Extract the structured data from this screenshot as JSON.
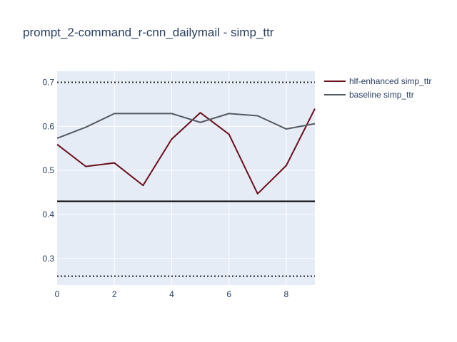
{
  "chart_data": {
    "type": "line",
    "title": "prompt_2-command_r-cnn_dailymail - simp_ttr",
    "xlabel": "",
    "ylabel": "",
    "xlim": [
      0,
      9
    ],
    "ylim": [
      0.24,
      0.725
    ],
    "x_ticks": [
      0,
      2,
      4,
      6,
      8
    ],
    "y_ticks": [
      0.3,
      0.4,
      0.5,
      0.6,
      0.7
    ],
    "grid": true,
    "legend_position": "top-right",
    "x": [
      0,
      1,
      2,
      3,
      4,
      5,
      6,
      7,
      8,
      9
    ],
    "series": [
      {
        "name": "hlf-enhanced simp_ttr",
        "color": "#6b0f1a",
        "values": [
          0.559,
          0.509,
          0.517,
          0.466,
          0.571,
          0.631,
          0.582,
          0.447,
          0.511,
          0.64
        ]
      },
      {
        "name": "baseline simp_ttr",
        "color": "#555a60",
        "values": [
          0.573,
          0.598,
          0.629,
          0.629,
          0.629,
          0.609,
          0.629,
          0.624,
          0.594,
          0.606
        ]
      }
    ],
    "reference_lines": [
      {
        "y": 0.7,
        "style": "dotted",
        "color": "#222222"
      },
      {
        "y": 0.43,
        "style": "solid",
        "color": "#000000"
      },
      {
        "y": 0.26,
        "style": "dotted",
        "color": "#222222"
      }
    ]
  }
}
